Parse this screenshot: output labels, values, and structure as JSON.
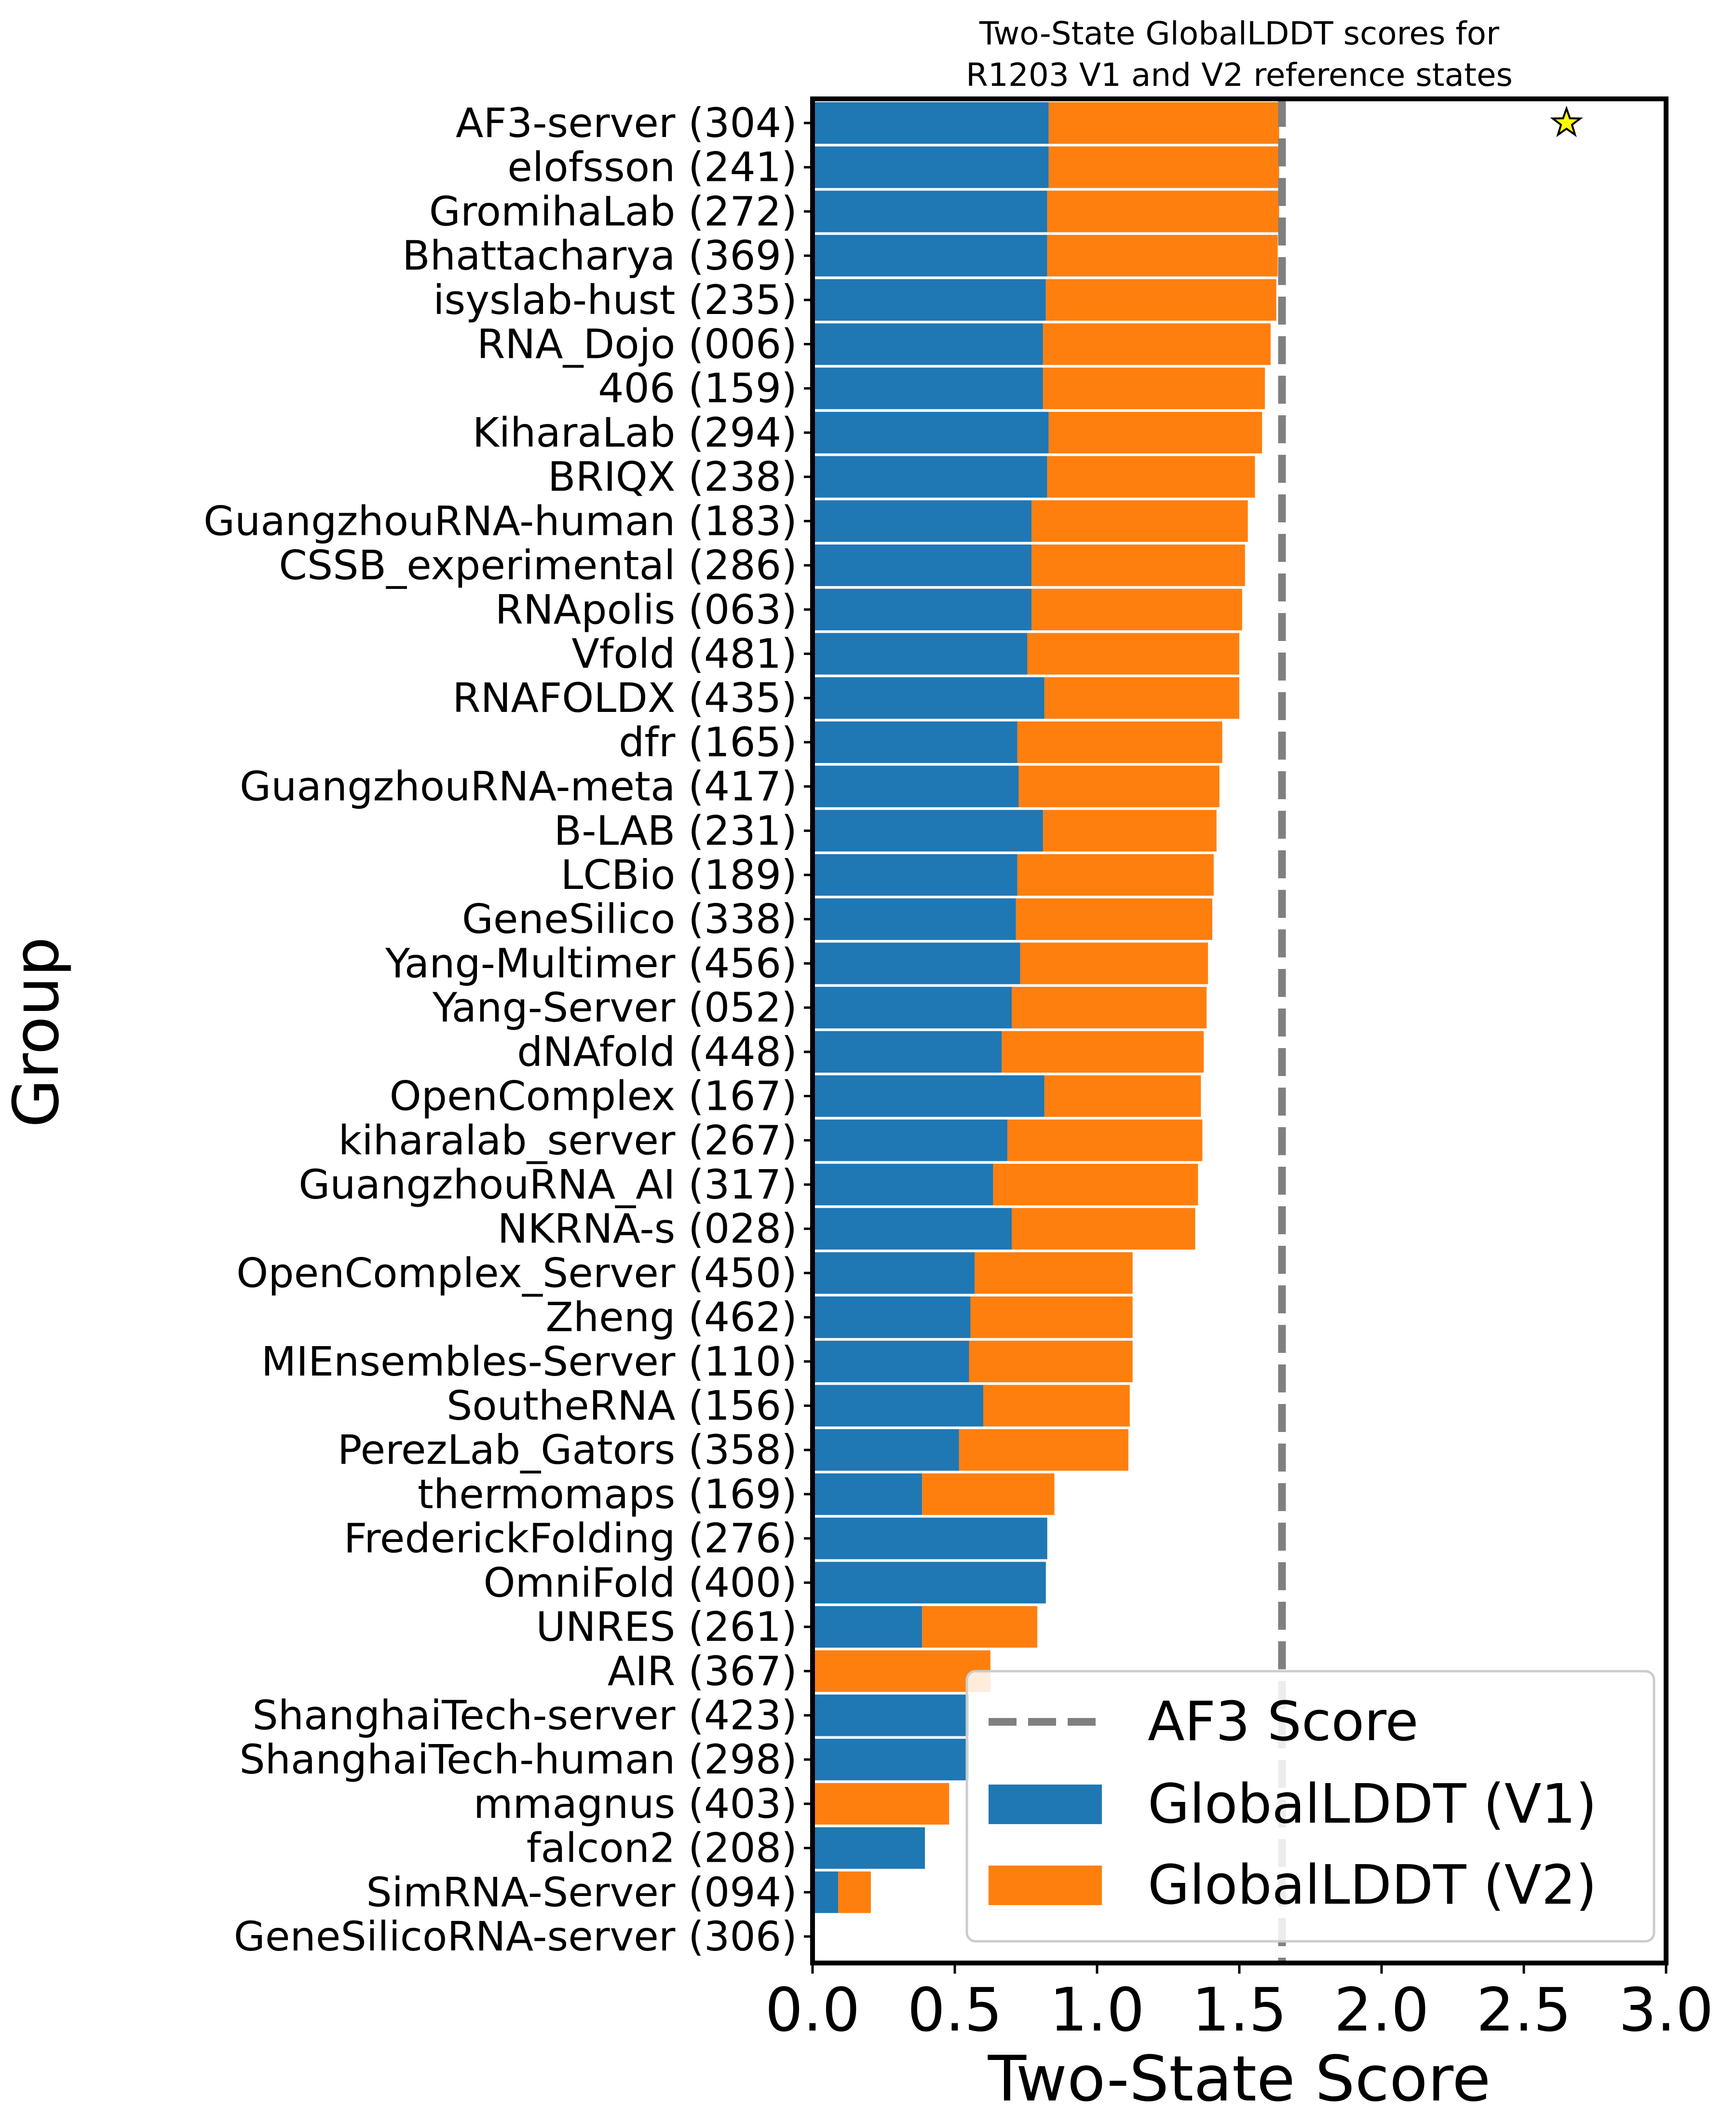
{
  "chart_data": {
    "type": "bar",
    "orientation": "horizontal",
    "stacked": true,
    "title": "Two-State GlobalLDDT scores for\nR1203 V1 and V2 reference states",
    "xlabel": "Two-State Score",
    "ylabel": "Group",
    "xlim": [
      0.0,
      3.0
    ],
    "xticks": [
      "0.0",
      "0.5",
      "1.0",
      "1.5",
      "2.0",
      "2.5",
      "3.0"
    ],
    "reference_line": {
      "name": "AF3 Score",
      "value": 1.65,
      "style": "dashed",
      "color": "#808080"
    },
    "marker": {
      "shape": "star",
      "x": 2.65,
      "category": "AF3-server (304)",
      "color": "#ffff00"
    },
    "legend_position": "lower right",
    "categories": [
      "AF3-server (304)",
      "elofsson (241)",
      "GromihaLab (272)",
      "Bhattacharya (369)",
      "isyslab-hust (235)",
      "RNA_Dojo (006)",
      "406 (159)",
      "KiharaLab (294)",
      "BRIQX (238)",
      "GuangzhouRNA-human (183)",
      "CSSB_experimental (286)",
      "RNApolis (063)",
      "Vfold (481)",
      "RNAFOLDX (435)",
      "dfr (165)",
      "GuangzhouRNA-meta (417)",
      "B-LAB (231)",
      "LCBio (189)",
      "GeneSilico (338)",
      "Yang-Multimer (456)",
      "Yang-Server (052)",
      "dNAfold (448)",
      "OpenComplex (167)",
      "kiharalab_server (267)",
      "GuangzhouRNA_AI (317)",
      "NKRNA-s (028)",
      "OpenComplex_Server (450)",
      "Zheng (462)",
      "MIEnsembles-Server (110)",
      "SoutheRNA (156)",
      "PerezLab_Gators (358)",
      "thermomaps (169)",
      "FrederickFolding (276)",
      "OmniFold (400)",
      "UNRES (261)",
      "AIR (367)",
      "ShanghaiTech-server (423)",
      "ShanghaiTech-human (298)",
      "mmagnus (403)",
      "falcon2 (208)",
      "SimRNA-Server (094)",
      "GeneSilicoRNA-server (306)"
    ],
    "series": [
      {
        "name": "GlobalLDDT (V1)",
        "color": "#1f77b4",
        "values": [
          0.83,
          0.83,
          0.825,
          0.825,
          0.82,
          0.81,
          0.81,
          0.83,
          0.825,
          0.77,
          0.77,
          0.77,
          0.755,
          0.815,
          0.72,
          0.725,
          0.81,
          0.72,
          0.715,
          0.73,
          0.7,
          0.665,
          0.815,
          0.685,
          0.635,
          0.7,
          0.57,
          0.555,
          0.55,
          0.6,
          0.515,
          0.385,
          0.825,
          0.82,
          0.385,
          0.0,
          0.55,
          0.55,
          0.0,
          0.395,
          0.09,
          0.0
        ]
      },
      {
        "name": "GlobalLDDT (V2)",
        "color": "#ff7f0e",
        "values": [
          0.81,
          0.81,
          0.815,
          0.81,
          0.81,
          0.8,
          0.78,
          0.75,
          0.73,
          0.76,
          0.75,
          0.74,
          0.745,
          0.685,
          0.72,
          0.705,
          0.61,
          0.69,
          0.69,
          0.66,
          0.685,
          0.71,
          0.55,
          0.685,
          0.72,
          0.645,
          0.555,
          0.57,
          0.575,
          0.515,
          0.595,
          0.465,
          0.0,
          0.0,
          0.405,
          0.625,
          0.0,
          0.0,
          0.48,
          0.0,
          0.115,
          0.0
        ]
      }
    ]
  }
}
